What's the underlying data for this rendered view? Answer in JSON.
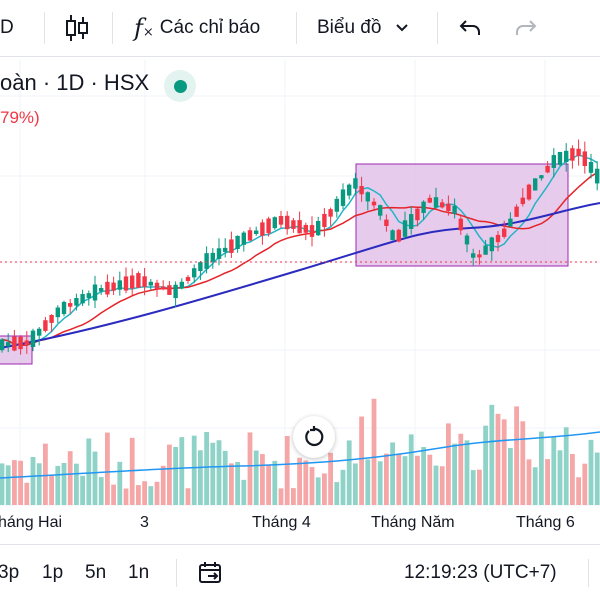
{
  "toolbar": {
    "interval_label": "D",
    "indicators_label": "Các chỉ báo",
    "chart_type_label": "Biểu đồ"
  },
  "legend": {
    "title": "oàn · 1D · HSX",
    "change": "79%)",
    "status_color": "#089981"
  },
  "x_axis": {
    "labels": [
      "háng Hai",
      "3",
      "Tháng 4",
      "Tháng Năm",
      "Tháng 6"
    ]
  },
  "bottom_bar": {
    "ranges": [
      "3p",
      "1p",
      "5n",
      "1n"
    ],
    "time": "12:19:23 (UTC+7)"
  },
  "colors": {
    "up": "#089981",
    "down": "#f23645",
    "up_volume": "#8fd3c8",
    "down_volume": "#f5a7a7",
    "ma_fast": "#22b5c5",
    "ma_mid": "#e5242a",
    "ma_slow": "#2b2bbf",
    "volume_ma": "#2196f3",
    "rect_fill": "#e1bee7",
    "rect_border": "#9c27b0",
    "price_line": "#f23645"
  }
}
